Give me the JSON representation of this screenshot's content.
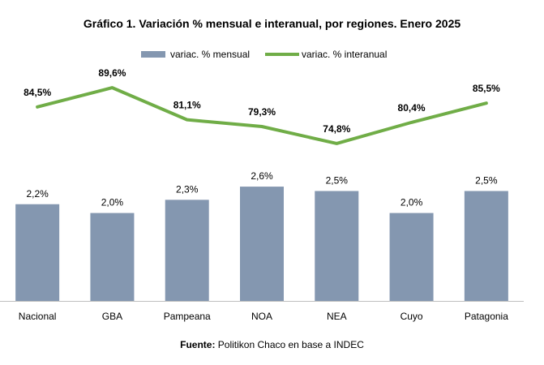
{
  "chart_data": {
    "type": "bar+line",
    "title": "Gráfico 1. Variación % mensual e interanual, por regiones. Enero 2025",
    "categories": [
      "Nacional",
      "GBA",
      "Pampeana",
      "NOA",
      "NEA",
      "Cuyo",
      "Patagonia"
    ],
    "series": [
      {
        "name": "variac. % mensual",
        "type": "bar",
        "values": [
          2.2,
          2.0,
          2.3,
          2.6,
          2.5,
          2.0,
          2.5
        ],
        "labels": [
          "2,2%",
          "2,0%",
          "2,3%",
          "2,6%",
          "2,5%",
          "2,0%",
          "2,5%"
        ],
        "color": "#8497B0"
      },
      {
        "name": "variac. % interanual",
        "type": "line",
        "values": [
          84.5,
          89.6,
          81.1,
          79.3,
          74.8,
          80.4,
          85.5
        ],
        "labels": [
          "84,5%",
          "89,6%",
          "81,1%",
          "79,3%",
          "74,8%",
          "80,4%",
          "85,5%"
        ],
        "color": "#70AD47"
      }
    ],
    "legend_position": "top",
    "grid": false,
    "xlabel": "",
    "ylabel": ""
  },
  "legend": {
    "bar_label": "variac. % mensual",
    "line_label": "variac. % interanual"
  },
  "source": {
    "label": "Fuente:",
    "text": " Politikon Chaco en base a INDEC"
  }
}
